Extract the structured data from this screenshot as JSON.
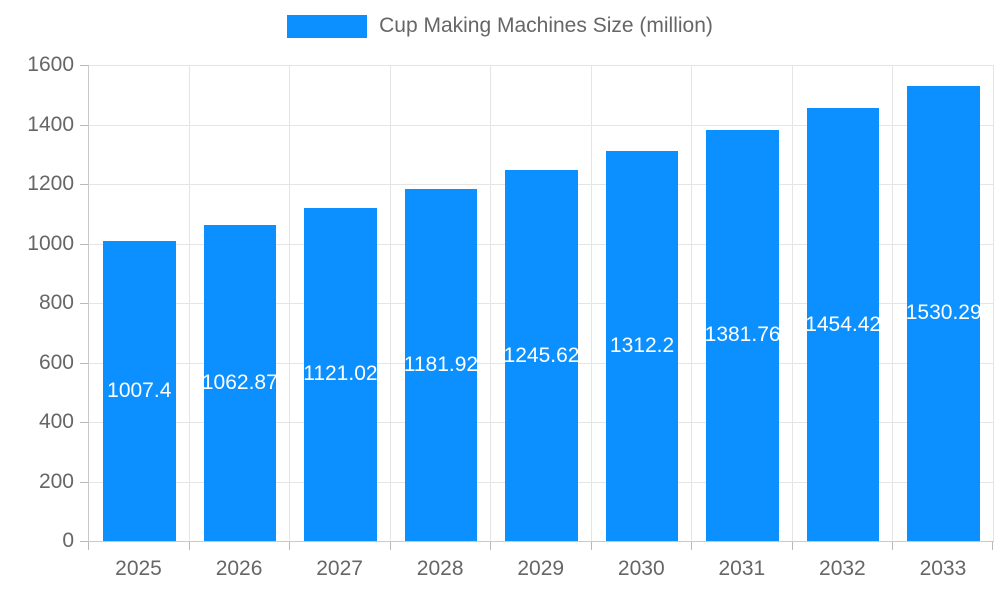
{
  "legend": {
    "label": "Cup Making Machines Size (million)"
  },
  "chart_data": {
    "type": "bar",
    "title": "",
    "xlabel": "",
    "ylabel": "",
    "categories": [
      "2025",
      "2026",
      "2027",
      "2028",
      "2029",
      "2030",
      "2031",
      "2032",
      "2033"
    ],
    "series": [
      {
        "name": "Cup Making Machines Size (million)",
        "values": [
          1007.4,
          1062.87,
          1121.02,
          1181.92,
          1245.62,
          1312.2,
          1381.76,
          1454.42,
          1530.29
        ]
      }
    ],
    "bar_labels": [
      "1007.4",
      "1062.87",
      "1121.02",
      "1181.92",
      "1245.62",
      "1312.2",
      "1381.76",
      "1454.42",
      "1530.29"
    ],
    "ylim": [
      0,
      1600
    ],
    "ytick_step": 200,
    "yticks": [
      0,
      200,
      400,
      600,
      800,
      1000,
      1200,
      1400,
      1600
    ],
    "grid": true,
    "legend_position": "top",
    "colors": {
      "bar": "#0d90ff",
      "grid": "#e5e5e5",
      "axis_border": "#c9c9c9",
      "tick": "#b9b9b9",
      "axis_text": "#666666",
      "bar_label_text": "#ffffff"
    }
  }
}
